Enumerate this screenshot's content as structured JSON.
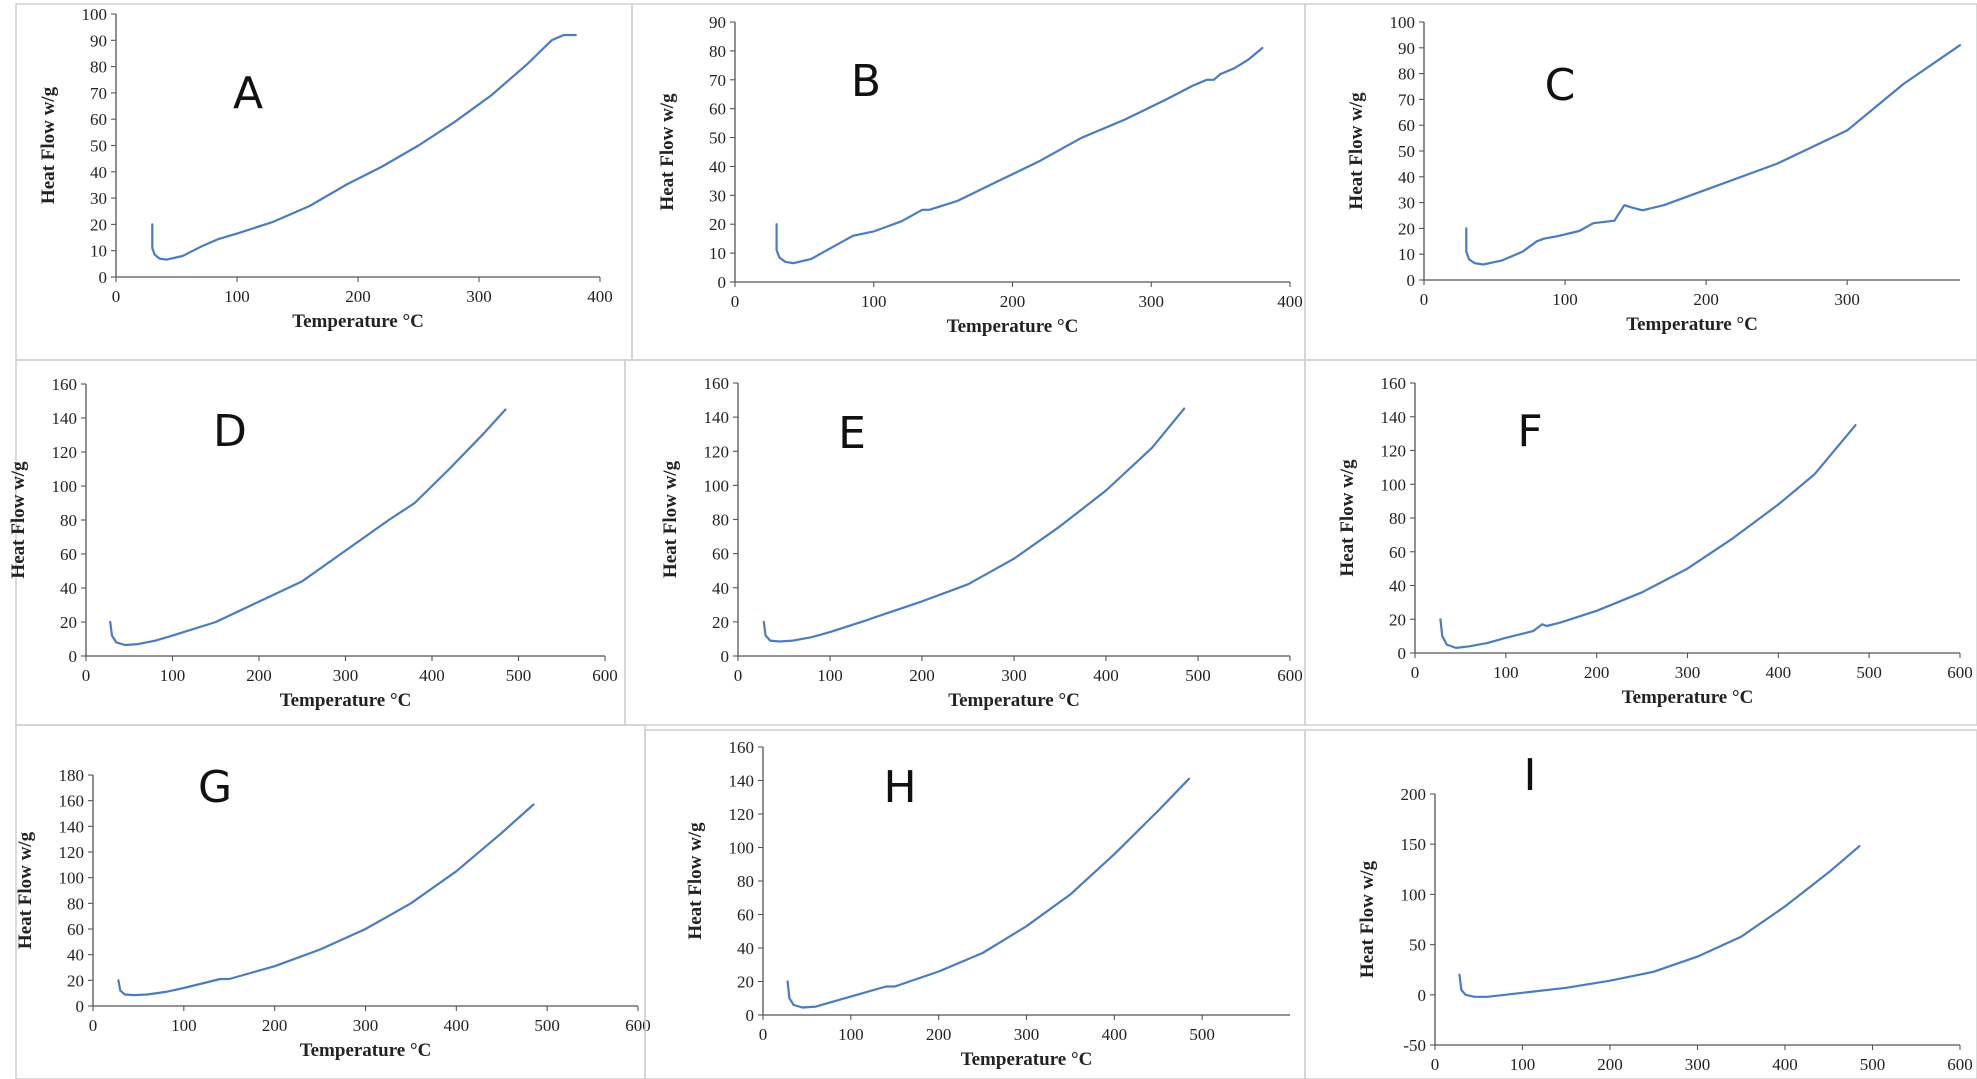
{
  "chart_data": [
    {
      "letter": "A",
      "type": "line",
      "xlabel": "Temperature °C",
      "ylabel": "Heat Flow w/g",
      "xlim": [
        0,
        400
      ],
      "ylim": [
        0,
        100
      ],
      "xticks": [
        0,
        100,
        200,
        300,
        400
      ],
      "yticks": [
        0,
        10,
        20,
        30,
        40,
        50,
        60,
        70,
        80,
        90,
        100
      ],
      "x": [
        30,
        30,
        32,
        36,
        42,
        55,
        70,
        85,
        100,
        130,
        160,
        190,
        220,
        250,
        280,
        310,
        340,
        360,
        370,
        380
      ],
      "y": [
        20,
        11,
        8.5,
        7,
        6.6,
        8,
        11.5,
        14.5,
        16.5,
        21,
        27,
        35,
        42,
        50,
        59,
        69,
        81,
        90,
        92,
        92
      ]
    },
    {
      "letter": "B",
      "type": "line",
      "xlabel": "Temperature °C",
      "ylabel": "Heat Flow w/g",
      "xlim": [
        0,
        400
      ],
      "ylim": [
        0,
        90
      ],
      "xticks": [
        0,
        100,
        200,
        300,
        400
      ],
      "yticks": [
        0,
        10,
        20,
        30,
        40,
        50,
        60,
        70,
        80,
        90
      ],
      "x": [
        30,
        30,
        32,
        36,
        42,
        55,
        70,
        85,
        100,
        120,
        135,
        140,
        160,
        190,
        220,
        250,
        280,
        310,
        330,
        340,
        345,
        350,
        360,
        370,
        380
      ],
      "y": [
        20,
        11,
        8.5,
        7,
        6.5,
        8,
        12,
        16,
        17.5,
        21,
        25,
        25,
        28,
        35,
        42,
        50,
        56,
        63,
        68,
        70,
        70,
        72,
        74,
        77,
        81
      ]
    },
    {
      "letter": "C",
      "type": "line",
      "xlabel": "Temperature °C",
      "ylabel": "Heat Flow w/g",
      "xlim": [
        0,
        380
      ],
      "ylim": [
        0,
        100
      ],
      "xticks": [
        0,
        100,
        200,
        300
      ],
      "yticks": [
        0,
        10,
        20,
        30,
        40,
        50,
        60,
        70,
        80,
        90,
        100
      ],
      "x": [
        30,
        30,
        32,
        36,
        42,
        55,
        70,
        80,
        85,
        95,
        110,
        120,
        135,
        142,
        148,
        155,
        170,
        200,
        250,
        300,
        340,
        380
      ],
      "y": [
        20,
        11,
        8,
        6.5,
        6,
        7.5,
        11,
        15,
        16,
        17,
        19,
        22,
        23,
        29,
        28,
        27,
        29,
        35,
        45,
        58,
        76,
        91
      ]
    },
    {
      "letter": "D",
      "type": "line",
      "xlabel": "Temperature °C",
      "ylabel": "Heat Flow w/g",
      "xlim": [
        0,
        600
      ],
      "ylim": [
        0,
        160
      ],
      "xticks": [
        0,
        100,
        200,
        300,
        400,
        500,
        600
      ],
      "yticks": [
        0,
        20,
        40,
        60,
        80,
        100,
        120,
        140,
        160
      ],
      "x": [
        28,
        30,
        35,
        45,
        60,
        80,
        100,
        150,
        200,
        250,
        300,
        350,
        380,
        420,
        460,
        485
      ],
      "y": [
        20,
        12,
        8,
        6.5,
        7,
        9,
        12,
        20,
        32,
        44,
        62,
        80,
        90,
        110,
        131,
        145
      ]
    },
    {
      "letter": "E",
      "type": "line",
      "xlabel": "Temperature °C",
      "ylabel": "Heat Flow w/g",
      "xlim": [
        0,
        600
      ],
      "ylim": [
        0,
        160
      ],
      "xticks": [
        0,
        100,
        200,
        300,
        400,
        500,
        600
      ],
      "yticks": [
        0,
        20,
        40,
        60,
        80,
        100,
        120,
        140,
        160
      ],
      "x": [
        28,
        30,
        35,
        45,
        60,
        80,
        100,
        140,
        145,
        200,
        250,
        300,
        350,
        400,
        450,
        485
      ],
      "y": [
        20,
        12,
        9,
        8.5,
        9,
        11,
        14,
        21,
        22,
        32,
        42,
        57,
        76,
        97,
        122,
        145
      ]
    },
    {
      "letter": "F",
      "type": "line",
      "xlabel": "Temperature °C",
      "ylabel": "Heat Flow w/g",
      "xlim": [
        0,
        600
      ],
      "ylim": [
        0,
        160
      ],
      "xticks": [
        0,
        100,
        200,
        300,
        400,
        500,
        600
      ],
      "yticks": [
        0,
        20,
        40,
        60,
        80,
        100,
        120,
        140,
        160
      ],
      "x": [
        28,
        30,
        35,
        45,
        60,
        80,
        100,
        130,
        140,
        145,
        160,
        200,
        250,
        300,
        350,
        400,
        440,
        485
      ],
      "y": [
        20,
        10,
        5,
        3,
        4,
        6,
        9,
        13,
        17,
        16,
        18,
        25,
        36,
        50,
        68,
        88,
        106,
        135
      ]
    },
    {
      "letter": "G",
      "type": "line",
      "xlabel": "Temperature °C",
      "ylabel": "Heat Flow w/g",
      "xlim": [
        0,
        600
      ],
      "ylim": [
        0,
        180
      ],
      "xticks": [
        0,
        100,
        200,
        300,
        400,
        500,
        600
      ],
      "yticks": [
        0,
        20,
        40,
        60,
        80,
        100,
        120,
        140,
        160,
        180
      ],
      "x": [
        28,
        30,
        35,
        45,
        60,
        80,
        100,
        140,
        150,
        200,
        250,
        300,
        350,
        400,
        450,
        485
      ],
      "y": [
        20,
        12,
        9,
        8.5,
        9,
        11,
        14,
        21,
        21,
        31,
        44,
        60,
        80,
        105,
        135,
        157
      ]
    },
    {
      "letter": "H",
      "type": "line",
      "xlabel": "Temperature °C",
      "ylabel": "Heat Flow w/g",
      "xlim": [
        0,
        600
      ],
      "ylim": [
        0,
        160
      ],
      "xticks": [
        0,
        100,
        200,
        300,
        400,
        500
      ],
      "yticks": [
        0,
        20,
        40,
        60,
        80,
        100,
        120,
        140,
        160
      ],
      "x": [
        28,
        30,
        35,
        45,
        60,
        80,
        100,
        140,
        150,
        200,
        250,
        300,
        350,
        400,
        450,
        485
      ],
      "y": [
        20,
        10,
        6,
        4.5,
        5,
        8,
        11,
        17,
        17,
        26,
        37,
        53,
        72,
        96,
        122,
        141
      ]
    },
    {
      "letter": "I",
      "type": "line",
      "xlabel": "Temperature °C",
      "ylabel": "Heat Flow w/g",
      "xlim": [
        0,
        600
      ],
      "ylim": [
        -50,
        200
      ],
      "xticks": [
        0,
        100,
        200,
        300,
        400,
        500,
        600
      ],
      "yticks": [
        -50,
        0,
        50,
        100,
        150,
        200
      ],
      "x": [
        28,
        30,
        35,
        45,
        60,
        80,
        100,
        150,
        200,
        250,
        300,
        350,
        400,
        450,
        485
      ],
      "y": [
        20,
        5,
        0,
        -2,
        -2,
        0,
        2,
        7,
        14,
        23,
        38,
        58,
        88,
        122,
        148
      ]
    }
  ]
}
